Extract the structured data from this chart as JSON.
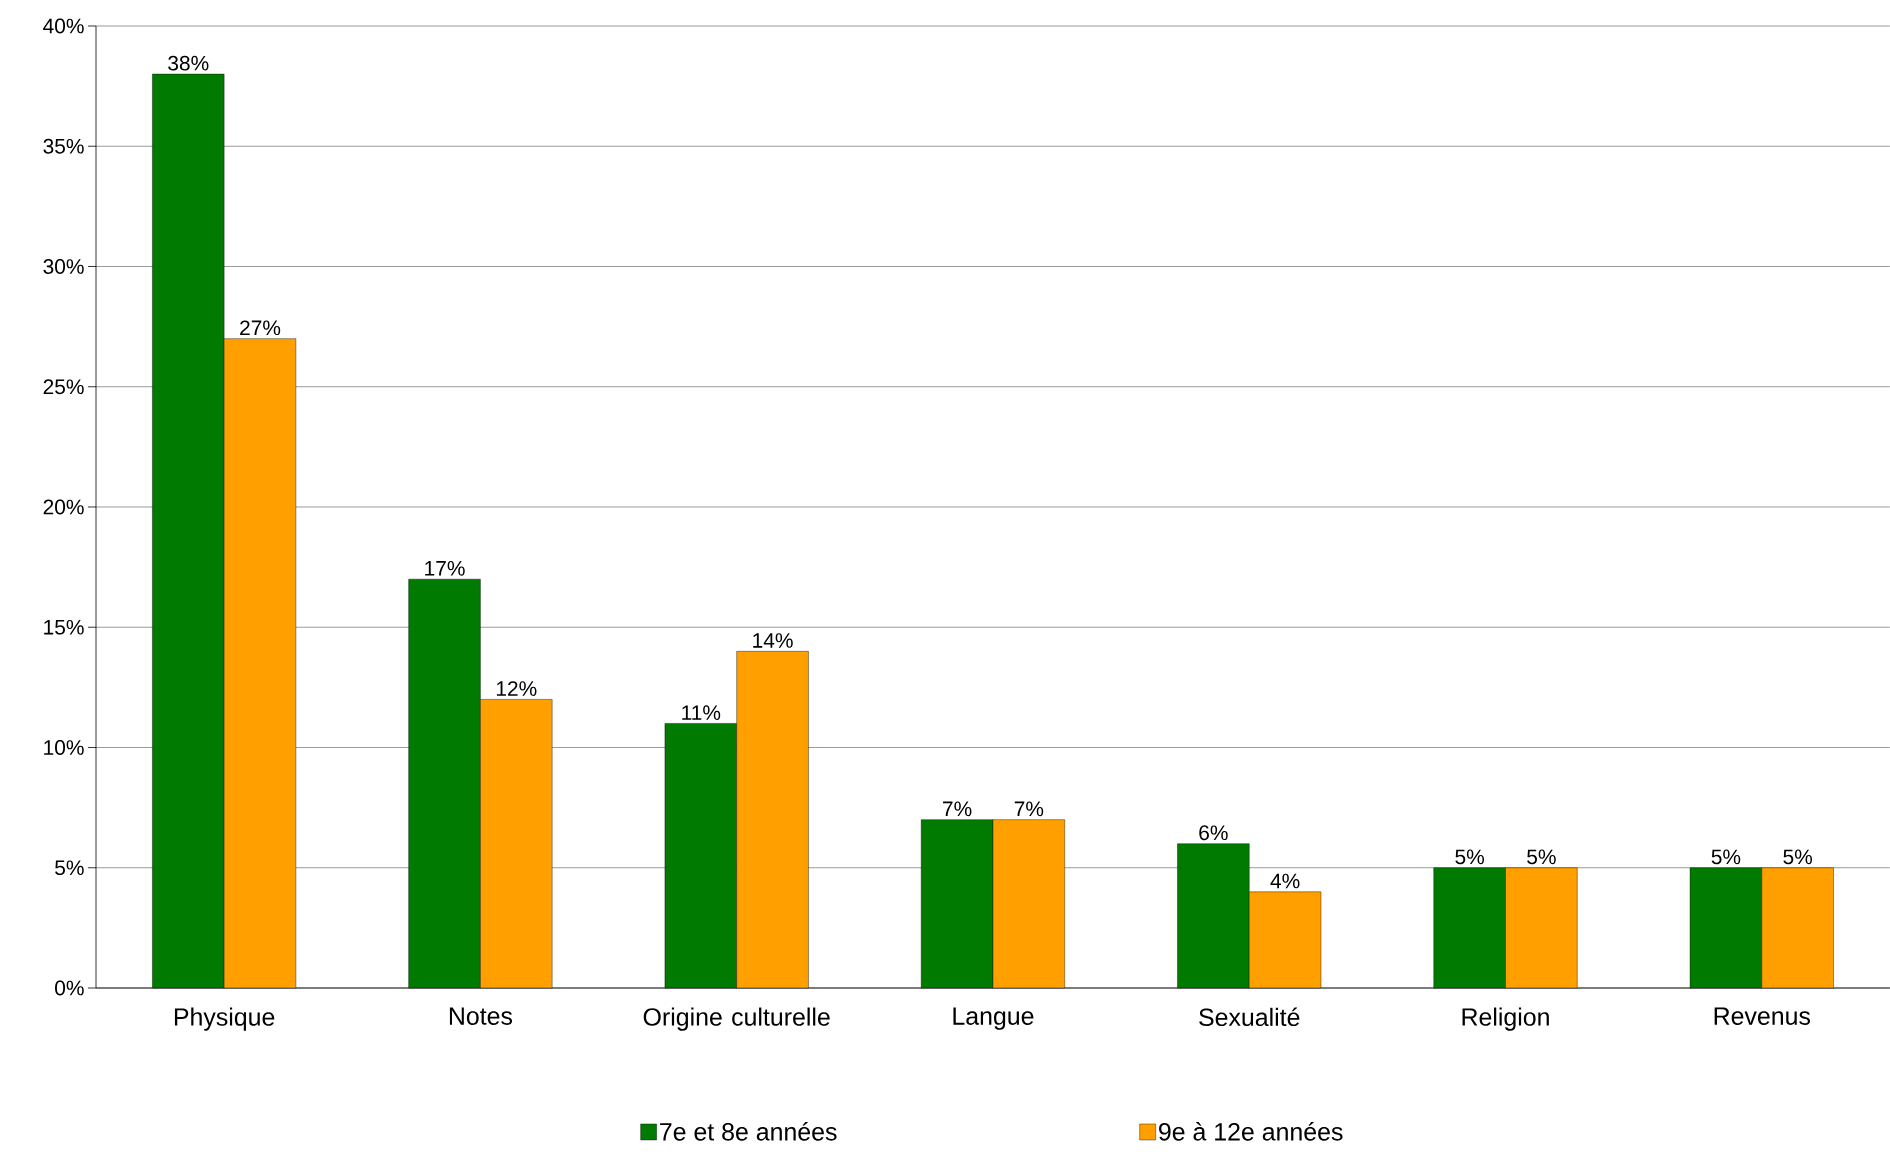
{
  "chart_data": {
    "type": "bar",
    "categories": [
      "Physique",
      "Notes",
      "Origine culturelle",
      "Langue",
      "Sexualité",
      "Religion",
      "Revenus"
    ],
    "series": [
      {
        "name": "7e et 8e années",
        "color": "#007a00",
        "values": [
          38,
          17,
          11,
          7,
          6,
          5,
          5
        ],
        "value_labels": [
          "38%",
          "17%",
          "11%",
          "7%",
          "6%",
          "5%",
          "5%"
        ]
      },
      {
        "name": "9e à 12e années",
        "color": "#ffa000",
        "values": [
          27,
          12,
          14,
          7,
          4,
          5,
          5
        ],
        "value_labels": [
          "27%",
          "12%",
          "14%",
          "7%",
          "4%",
          "5%",
          "5%"
        ]
      }
    ],
    "ylim": [
      0,
      40
    ],
    "yticks": [
      {
        "value": 0,
        "label": "0%"
      },
      {
        "value": 5,
        "label": "5%"
      },
      {
        "value": 10,
        "label": "10%"
      },
      {
        "value": 15,
        "label": "15%"
      },
      {
        "value": 20,
        "label": "20%"
      },
      {
        "value": 25,
        "label": "25%"
      },
      {
        "value": 30,
        "label": "30%"
      },
      {
        "value": 35,
        "label": "35%"
      },
      {
        "value": 40,
        "label": "40%"
      }
    ],
    "grid": "y",
    "legend": "bottom"
  }
}
